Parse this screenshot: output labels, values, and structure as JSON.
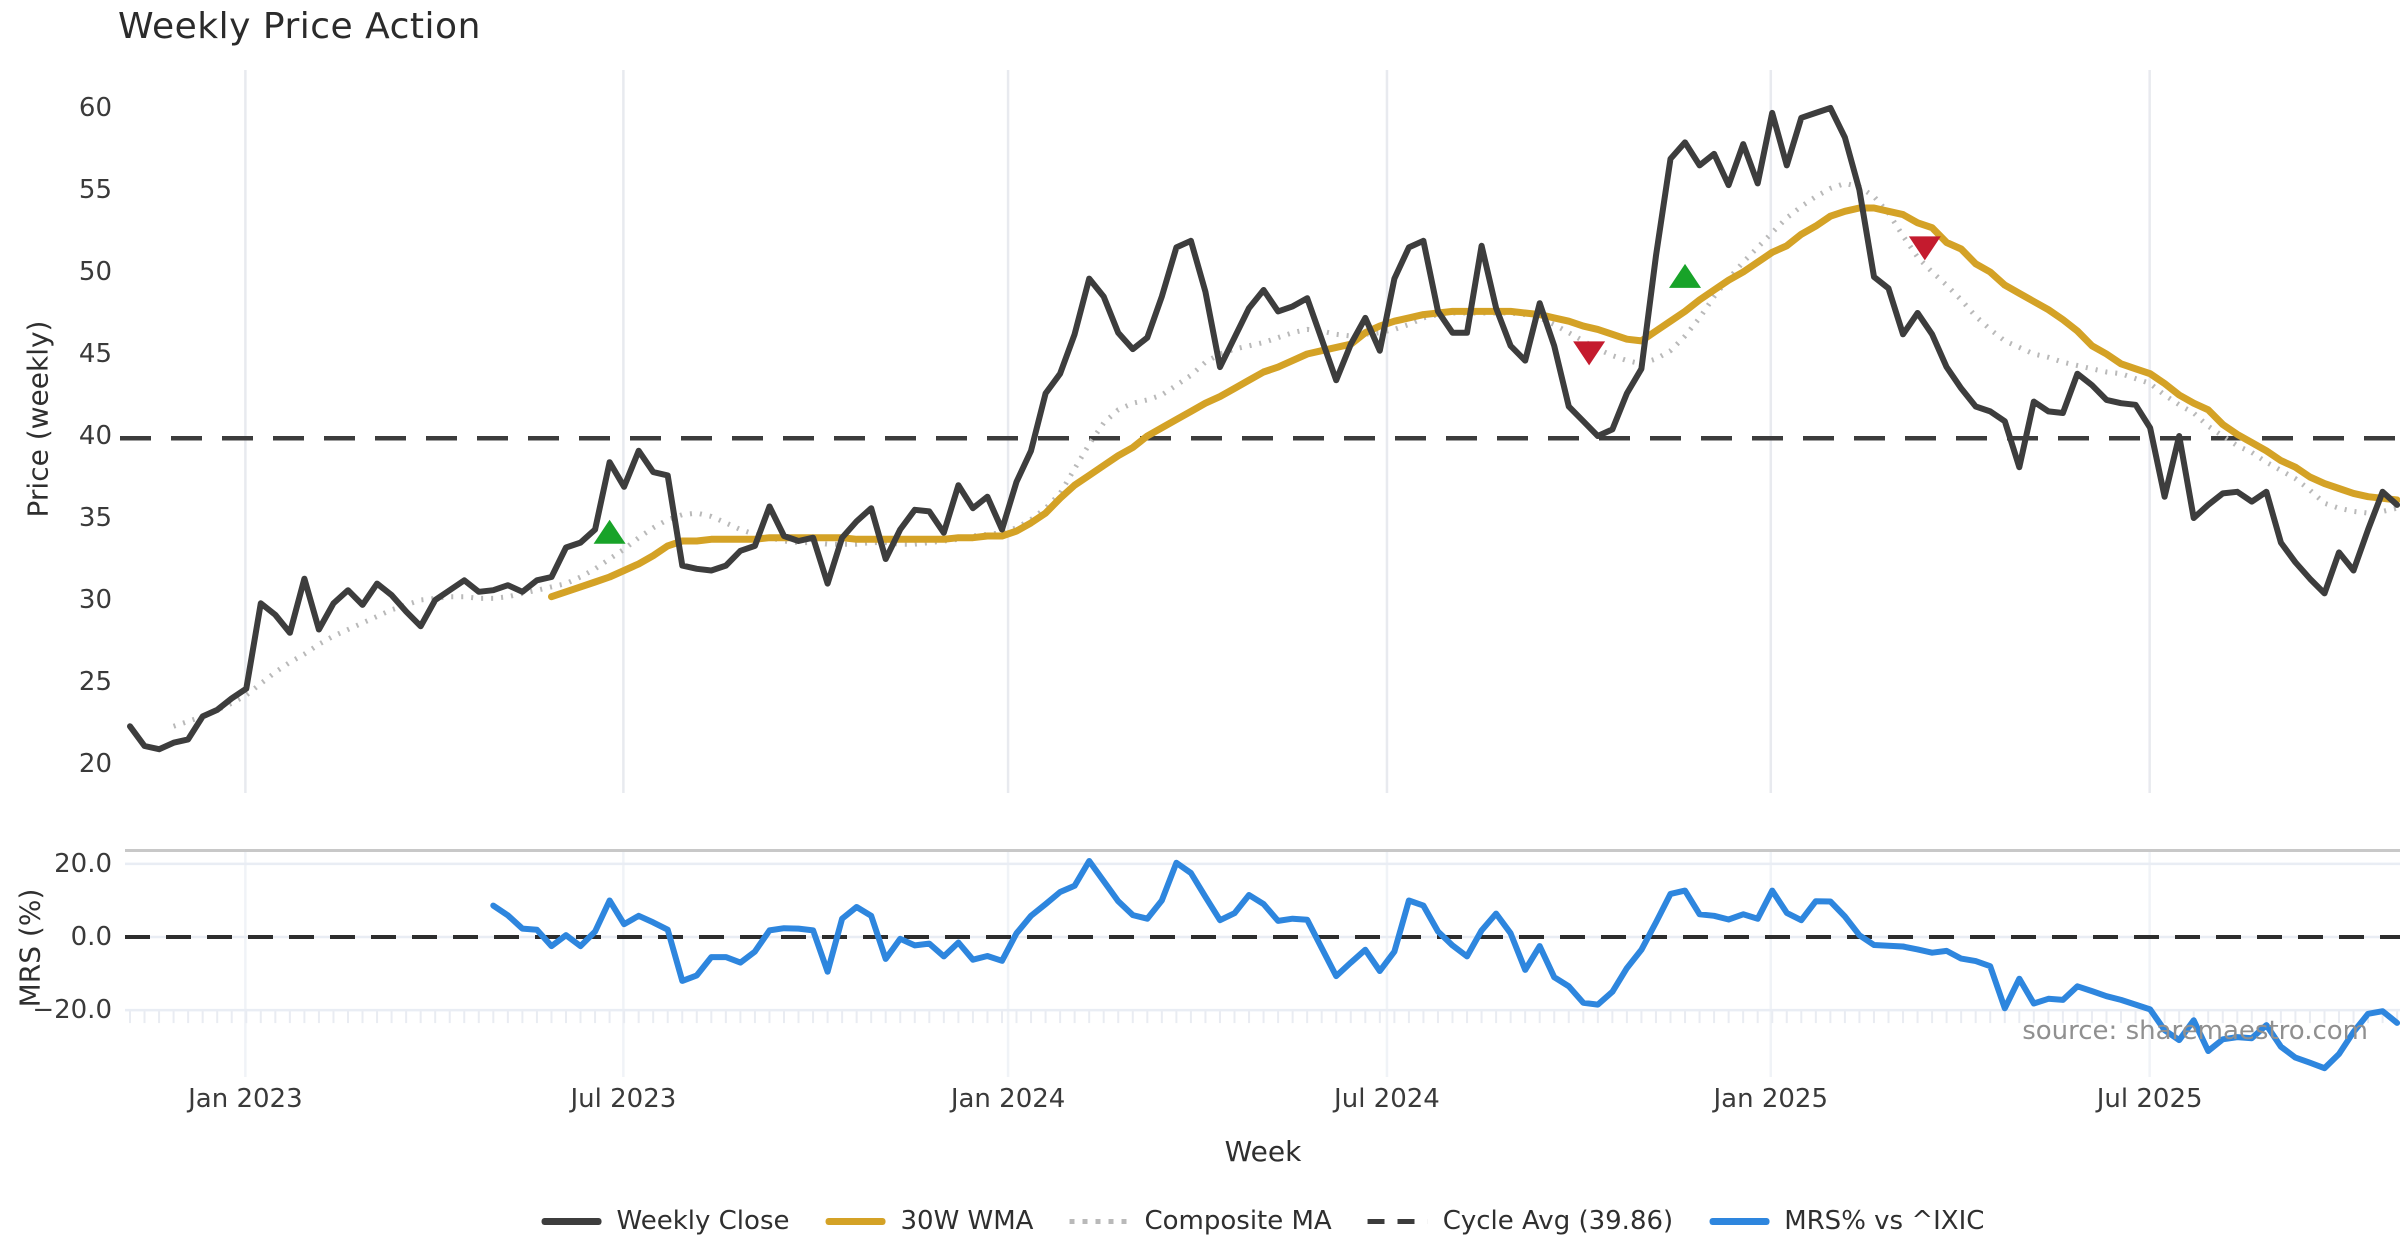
{
  "title": "Weekly Price Action",
  "source_note": "source: sharemaestro.com",
  "colors": {
    "weekly_close": "#3d3d3d",
    "wma": "#d4a226",
    "composite": "#b9b9b9",
    "cycle_avg": "#3c3c3c",
    "mrs": "#2e86de",
    "buy_marker": "#18a329",
    "sell_marker": "#c41b2e",
    "grid_vertical": "#e8eaef",
    "grid_horizontal": "#e9edf4",
    "panel_divider": "#c8c8c8",
    "minor_tick": "#e9ecf2"
  },
  "legend": {
    "items": [
      {
        "label": "Weekly Close",
        "color": "#3d3d3d",
        "style": "solid"
      },
      {
        "label": "30W WMA",
        "color": "#d4a226",
        "style": "solid"
      },
      {
        "label": "Composite MA",
        "color": "#b9b9b9",
        "style": "dotted"
      },
      {
        "label": "Cycle Avg (39.86)",
        "color": "#3c3c3c",
        "style": "dashed"
      },
      {
        "label": "MRS% vs ^IXIC",
        "color": "#2e86de",
        "style": "solid"
      }
    ]
  },
  "chart_data": [
    {
      "type": "line",
      "panel": "price",
      "title": "Weekly Price Action",
      "ylabel": "Price (weekly)",
      "xlabel": "Week",
      "ylim": [
        18.5,
        62.1
      ],
      "yticks": [
        {
          "v": 20,
          "label": "20"
        },
        {
          "v": 25,
          "label": "25"
        },
        {
          "v": 30,
          "label": "30"
        },
        {
          "v": 35,
          "label": "35"
        },
        {
          "v": 40,
          "label": "40"
        },
        {
          "v": 45,
          "label": "45"
        },
        {
          "v": 50,
          "label": "50"
        },
        {
          "v": 55,
          "label": "55"
        },
        {
          "v": 60,
          "label": "60"
        }
      ],
      "xticks": [
        {
          "week": 7.94,
          "label": "Jan 2023"
        },
        {
          "week": 33.95,
          "label": "Jul 2023"
        },
        {
          "week": 60.42,
          "label": "Jan 2024"
        },
        {
          "week": 86.49,
          "label": "Jul 2024"
        },
        {
          "week": 112.9,
          "label": "Jan 2025"
        },
        {
          "week": 138.97,
          "label": "Jul 2025"
        }
      ],
      "grid": "vertical-only",
      "cycle_avg_value": 39.86,
      "series": [
        {
          "name": "Weekly Close",
          "style": "solid",
          "start_week": 0,
          "values": [
            22.3,
            21.1,
            20.9,
            21.3,
            21.5,
            22.9,
            23.3,
            24.0,
            24.6,
            29.8,
            29.1,
            28.0,
            31.3,
            28.2,
            29.8,
            30.6,
            29.7,
            31.0,
            30.3,
            29.3,
            28.4,
            30.0,
            30.6,
            31.2,
            30.5,
            30.6,
            30.9,
            30.5,
            31.2,
            31.4,
            33.2,
            33.5,
            34.3,
            38.4,
            36.9,
            39.1,
            37.8,
            37.6,
            32.1,
            31.9,
            31.8,
            32.1,
            33.0,
            33.3,
            35.7,
            33.9,
            33.6,
            33.8,
            31.0,
            33.8,
            34.8,
            35.6,
            32.5,
            34.3,
            35.5,
            35.4,
            34.1,
            37.0,
            35.6,
            36.3,
            34.3,
            37.2,
            39.1,
            42.6,
            43.8,
            46.2,
            49.6,
            48.5,
            46.3,
            45.3,
            46.0,
            48.5,
            51.5,
            51.9,
            48.8,
            44.2,
            46.0,
            47.8,
            48.9,
            47.6,
            47.9,
            48.4,
            45.9,
            43.4,
            45.6,
            47.2,
            45.2,
            49.6,
            51.5,
            51.9,
            47.6,
            46.3,
            46.3,
            51.6,
            47.8,
            45.5,
            44.6,
            48.1,
            45.5,
            41.8,
            40.9,
            40.0,
            40.4,
            42.6,
            44.1,
            51.0,
            56.9,
            57.9,
            56.5,
            57.2,
            55.3,
            57.8,
            55.4,
            59.7,
            56.5,
            59.4,
            59.7,
            60.0,
            58.2,
            55.0,
            49.7,
            49.0,
            46.2,
            47.5,
            46.2,
            44.2,
            42.9,
            41.8,
            41.5,
            40.9,
            38.1,
            42.1,
            41.5,
            41.4,
            43.8,
            43.1,
            42.2,
            42.0,
            41.9,
            40.5,
            36.3,
            40.0,
            35.0,
            35.8,
            36.5,
            36.6,
            36.0,
            36.6,
            33.5,
            32.3,
            31.3,
            30.4,
            32.9,
            31.8,
            34.3,
            36.6,
            35.8
          ]
        },
        {
          "name": "30W WMA",
          "style": "solid",
          "start_week": 29,
          "values": [
            30.2,
            30.5,
            30.8,
            31.1,
            31.4,
            31.8,
            32.2,
            32.7,
            33.3,
            33.6,
            33.6,
            33.7,
            33.7,
            33.7,
            33.7,
            33.8,
            33.8,
            33.8,
            33.8,
            33.8,
            33.8,
            33.7,
            33.7,
            33.7,
            33.7,
            33.7,
            33.7,
            33.7,
            33.8,
            33.8,
            33.9,
            33.9,
            34.2,
            34.7,
            35.3,
            36.2,
            37.0,
            37.6,
            38.2,
            38.8,
            39.3,
            40.0,
            40.5,
            41.0,
            41.5,
            42.0,
            42.4,
            42.9,
            43.4,
            43.9,
            44.2,
            44.6,
            45.0,
            45.2,
            45.4,
            45.6,
            46.3,
            46.7,
            47.0,
            47.2,
            47.4,
            47.5,
            47.6,
            47.6,
            47.6,
            47.6,
            47.6,
            47.5,
            47.4,
            47.2,
            47.0,
            46.7,
            46.5,
            46.2,
            45.9,
            45.8,
            46.4,
            47.0,
            47.6,
            48.3,
            48.9,
            49.5,
            50.0,
            50.6,
            51.2,
            51.6,
            52.3,
            52.8,
            53.4,
            53.7,
            53.9,
            53.9,
            53.7,
            53.5,
            53.0,
            52.7,
            51.8,
            51.4,
            50.5,
            50.0,
            49.2,
            48.7,
            48.2,
            47.7,
            47.1,
            46.4,
            45.5,
            45.0,
            44.4,
            44.1,
            43.8,
            43.2,
            42.5,
            42.0,
            41.6,
            40.7,
            40.1,
            39.6,
            39.1,
            38.5,
            38.1,
            37.5,
            37.1,
            36.8,
            36.5,
            36.3,
            36.2,
            36.1
          ]
        },
        {
          "name": "Composite MA",
          "style": "dotted",
          "start_week": 3,
          "values": [
            22.3,
            22.6,
            22.9,
            23.3,
            23.7,
            24.2,
            24.9,
            25.6,
            26.2,
            26.7,
            27.3,
            27.8,
            28.2,
            28.6,
            29.0,
            29.4,
            29.7,
            30.0,
            30.1,
            30.2,
            30.2,
            30.1,
            30.1,
            30.2,
            30.4,
            30.6,
            30.8,
            31.0,
            31.4,
            31.9,
            32.5,
            33.1,
            33.8,
            34.4,
            34.9,
            35.2,
            35.3,
            35.1,
            34.7,
            34.3,
            34.0,
            33.8,
            33.6,
            33.5,
            33.5,
            33.4,
            33.4,
            33.4,
            33.5,
            33.5,
            33.4,
            33.4,
            33.5,
            33.6,
            33.7,
            33.9,
            34.0,
            34.1,
            34.4,
            34.9,
            35.6,
            36.5,
            38.0,
            39.5,
            40.8,
            41.6,
            42.0,
            42.2,
            42.5,
            43.1,
            43.7,
            44.5,
            45.0,
            45.3,
            45.5,
            45.7,
            46.0,
            46.3,
            46.5,
            46.4,
            46.2,
            46.1,
            46.2,
            46.3,
            46.5,
            46.8,
            47.2,
            47.4,
            47.5,
            47.5,
            47.5,
            47.5,
            47.5,
            47.4,
            47.2,
            46.8,
            46.3,
            45.8,
            45.3,
            44.9,
            44.6,
            44.4,
            44.7,
            45.2,
            46.1,
            47.2,
            48.5,
            49.6,
            50.6,
            51.5,
            52.4,
            53.3,
            54.0,
            54.6,
            55.1,
            55.4,
            55.2,
            54.6,
            53.6,
            52.2,
            50.9,
            50.0,
            49.2,
            48.3,
            47.3,
            46.5,
            45.8,
            45.4,
            45.0,
            44.8,
            44.5,
            44.3,
            44.1,
            43.9,
            43.8,
            43.5,
            43.2,
            42.5,
            41.9,
            41.4,
            40.6,
            40.0,
            39.4,
            39.0,
            38.4,
            37.9,
            37.4,
            36.7,
            35.9,
            35.6,
            35.4,
            35.3,
            35.4,
            35.6
          ]
        },
        {
          "name": "Cycle Avg (39.86)",
          "style": "dashed",
          "constant": 39.86
        }
      ],
      "markers": [
        {
          "signal": "buy",
          "shape": "triangle-up",
          "week": 33,
          "value": 34.1
        },
        {
          "signal": "sell",
          "shape": "triangle-down",
          "week": 100.4,
          "value": 45.1
        },
        {
          "signal": "buy",
          "shape": "triangle-up",
          "week": 107,
          "value": 49.7
        },
        {
          "signal": "sell",
          "shape": "triangle-down",
          "week": 123.5,
          "value": 51.5
        }
      ]
    },
    {
      "type": "line",
      "panel": "mrs",
      "ylabel": "MRS (%)",
      "ylim": [
        -38.3,
        23.5
      ],
      "yticks": [
        {
          "v": 20,
          "label": "20.0"
        },
        {
          "v": 0,
          "label": "0.0"
        },
        {
          "v": -20,
          "label": "−20.0"
        }
      ],
      "zero_line": 0,
      "grid": "horizontal",
      "series": [
        {
          "name": "MRS% vs ^IXIC",
          "style": "solid",
          "start_week": 25,
          "values": [
            8.6,
            5.9,
            2.3,
            2.0,
            -2.5,
            0.5,
            -2.5,
            1.5,
            10.0,
            3.5,
            5.8,
            4.0,
            2.0,
            -12.0,
            -10.5,
            -5.5,
            -5.5,
            -7.0,
            -4.0,
            1.8,
            2.4,
            2.3,
            1.8,
            -9.5,
            5.0,
            8.2,
            5.8,
            -6.0,
            -0.5,
            -2.3,
            -1.8,
            -5.3,
            -1.5,
            -6.2,
            -5.2,
            -6.5,
            1.0,
            5.8,
            9.0,
            12.3,
            14.0,
            20.8,
            15.3,
            9.8,
            6.0,
            5.0,
            10.0,
            20.3,
            17.5,
            11.0,
            4.6,
            6.5,
            11.5,
            9.0,
            4.4,
            5.0,
            4.7,
            -3.0,
            -10.7,
            -7.0,
            -3.5,
            -9.3,
            -4.0,
            10.0,
            8.6,
            1.5,
            -2.3,
            -5.3,
            1.8,
            6.4,
            1.0,
            -9.0,
            -2.5,
            -11.0,
            -13.5,
            -18.0,
            -18.5,
            -15.0,
            -8.5,
            -3.5,
            4.0,
            11.8,
            12.7,
            6.2,
            5.8,
            4.8,
            6.2,
            5.0,
            12.7,
            6.6,
            4.6,
            9.8,
            9.7,
            5.6,
            0.5,
            -2.2,
            -2.4,
            -2.6,
            -3.4,
            -4.3,
            -3.8,
            -5.9,
            -6.6,
            -8.0,
            -19.5,
            -11.4,
            -18.2,
            -16.9,
            -17.2,
            -13.5,
            -14.8,
            -16.2,
            -17.2,
            -18.5,
            -19.8,
            -25.5,
            -28.2,
            -22.8,
            -31.2,
            -28.0,
            -27.4,
            -27.7,
            -24.1,
            -30.0,
            -33.0,
            -34.4,
            -35.9,
            -32.0,
            -26.0,
            -21.0,
            -20.3,
            -23.5
          ]
        }
      ]
    }
  ]
}
